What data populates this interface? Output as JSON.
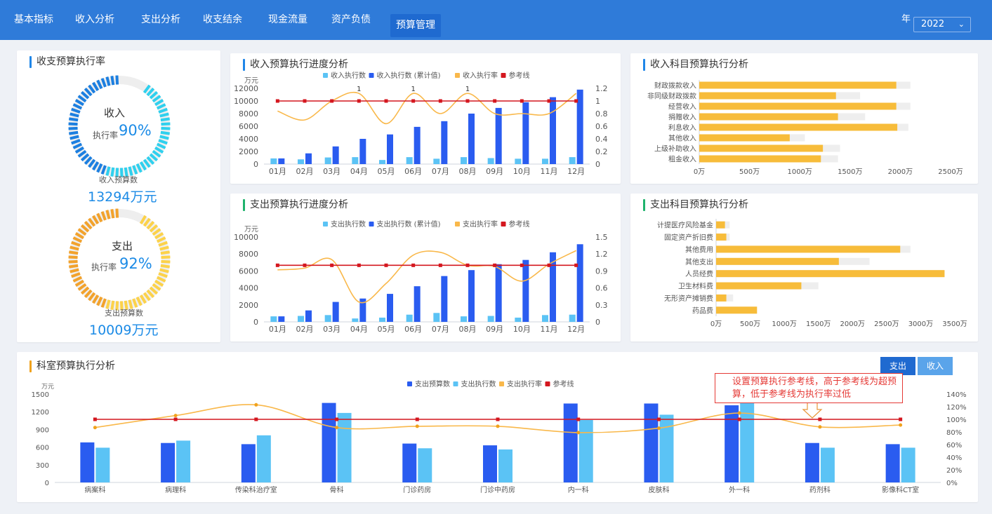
{
  "nav": {
    "items": [
      "基本指标",
      "收入分析",
      "支出分析",
      "收支结余",
      "现金流量",
      "资产负债",
      "预算管理"
    ],
    "active": 6,
    "year_label": "年",
    "year_value": "2022"
  },
  "colors": {
    "topbar": "#2f7bd9",
    "blue_dark": "#2a5cf0",
    "blue_light": "#5bc3f5",
    "orange": "#f9b84a",
    "ref_red": "#d4171f",
    "ring_blue": "#1c9ae0",
    "ring_orange": "#f5b43c",
    "bar_yellow": "#f7bc3a",
    "bar_gray": "#eeeeee"
  },
  "exec_rate": {
    "title": "收支预算执行率",
    "income": {
      "label": "收入",
      "rate_label": "执行率",
      "rate": "90%",
      "rate_value": 0.9,
      "budget_label": "收入预算数",
      "budget_value": "13294万元"
    },
    "expense": {
      "label": "支出",
      "rate_label": "执行率",
      "rate": "92%",
      "rate_value": 0.92,
      "budget_label": "支出预算数",
      "budget_value": "10009万元"
    }
  },
  "income_progress": {
    "title": "收入预算执行进度分析",
    "unit": "万元",
    "chart_data": {
      "type": "bar",
      "categories": [
        "01月",
        "02月",
        "03月",
        "04月",
        "05月",
        "06月",
        "07月",
        "08月",
        "09月",
        "10月",
        "11月",
        "12月"
      ],
      "series": [
        {
          "name": "收入执行数",
          "kind": "bar",
          "axis": "left",
          "values": [
            900,
            750,
            1050,
            1100,
            650,
            1100,
            850,
            1100,
            950,
            850,
            850,
            1100
          ]
        },
        {
          "name": "收入执行数 (累计值)",
          "kind": "bar",
          "axis": "left",
          "values": [
            900,
            1700,
            2800,
            4000,
            4700,
            5900,
            6800,
            8000,
            8900,
            9800,
            10600,
            11800
          ]
        },
        {
          "name": "收入执行率",
          "kind": "line",
          "axis": "right",
          "values": [
            0.84,
            0.7,
            1.0,
            1.12,
            0.64,
            1.12,
            0.8,
            1.12,
            0.8,
            0.8,
            0.8,
            1.12
          ]
        },
        {
          "name": "参考线",
          "kind": "line",
          "axis": "right",
          "values": [
            1,
            1,
            1,
            1,
            1,
            1,
            1,
            1,
            1,
            1,
            1,
            1
          ]
        }
      ],
      "point_labels": [
        {
          "index": 3,
          "text": "1"
        },
        {
          "index": 5,
          "text": "1"
        },
        {
          "index": 7,
          "text": "1"
        }
      ],
      "y_left": {
        "ticks": [
          "0",
          "2000",
          "4000",
          "6000",
          "8000",
          "10000",
          "12000"
        ],
        "min": 0,
        "max": 12000
      },
      "y_right": {
        "ticks": [
          "0",
          "0.2",
          "0.4",
          "0.6",
          "0.8",
          "1",
          "1.2"
        ],
        "min": 0,
        "max": 1.2
      },
      "legend_position": "top"
    }
  },
  "expense_progress": {
    "title": "支出预算执行进度分析",
    "unit": "万元",
    "chart_data": {
      "type": "bar",
      "categories": [
        "01月",
        "02月",
        "03月",
        "04月",
        "05月",
        "06月",
        "07月",
        "08月",
        "09月",
        "10月",
        "11月",
        "12月"
      ],
      "series": [
        {
          "name": "支出执行数",
          "kind": "bar",
          "axis": "left",
          "values": [
            650,
            700,
            800,
            400,
            500,
            850,
            1050,
            650,
            700,
            500,
            800,
            850
          ]
        },
        {
          "name": "支出执行数 (累计值)",
          "kind": "bar",
          "axis": "left",
          "values": [
            650,
            1350,
            2350,
            2750,
            3300,
            4200,
            5400,
            6100,
            6800,
            7300,
            8200,
            9150
          ]
        },
        {
          "name": "支出执行率",
          "kind": "line",
          "axis": "right",
          "values": [
            0.92,
            0.95,
            1.1,
            0.35,
            0.68,
            1.18,
            1.23,
            1.0,
            0.98,
            0.72,
            1.02,
            1.26
          ]
        },
        {
          "name": "参考线",
          "kind": "line",
          "axis": "right",
          "values": [
            1,
            1,
            1,
            1,
            1,
            1,
            1,
            1,
            1,
            1,
            1,
            1
          ]
        }
      ],
      "y_left": {
        "ticks": [
          "0",
          "2000",
          "4000",
          "6000",
          "8000",
          "10000"
        ],
        "min": 0,
        "max": 10000
      },
      "y_right": {
        "ticks": [
          "0",
          "0.3",
          "0.6",
          "0.9",
          "1.2",
          "1.5"
        ],
        "min": 0,
        "max": 1.5
      },
      "legend_position": "top"
    }
  },
  "income_subject": {
    "title": "收入科目预算执行分析",
    "chart_data": {
      "type": "bar",
      "orientation": "horizontal",
      "categories": [
        "财政拨款收入",
        "非同级财政拨款",
        "经营收入",
        "捐赠收入",
        "利息收入",
        "其他收入",
        "上级补助收入",
        "租金收入"
      ],
      "series": [
        {
          "name": "预算数",
          "values": [
            2100,
            1600,
            2100,
            1650,
            2080,
            1050,
            1400,
            1380
          ]
        },
        {
          "name": "执行数",
          "values": [
            1960,
            1360,
            1960,
            1380,
            1970,
            900,
            1230,
            1210
          ]
        }
      ],
      "x_ticks": [
        "0万",
        "500万",
        "1000万",
        "1500万",
        "2000万",
        "2500万"
      ],
      "xlim": [
        0,
        2500
      ]
    }
  },
  "expense_subject": {
    "title": "支出科目预算执行分析",
    "chart_data": {
      "type": "bar",
      "orientation": "horizontal",
      "categories": [
        "计提医疗风险基金",
        "固定资产折旧费",
        "其他费用",
        "其他支出",
        "人员经费",
        "卫生材料费",
        "无形资产摊销费",
        "药品费"
      ],
      "series": [
        {
          "name": "预算数",
          "values": [
            200,
            200,
            2850,
            2250,
            3350,
            1500,
            250,
            600
          ]
        },
        {
          "name": "执行数",
          "values": [
            130,
            150,
            2700,
            1800,
            3350,
            1250,
            150,
            600
          ]
        }
      ],
      "x_ticks": [
        "0万",
        "500万",
        "1000万",
        "1500万",
        "2000万",
        "2500万",
        "3000万",
        "3500万"
      ],
      "xlim": [
        0,
        3500
      ]
    }
  },
  "dept": {
    "title": "科室预算执行分析",
    "unit": "万元",
    "buttons": {
      "expense": "支出",
      "income": "收入"
    },
    "callout": "设置预算执行参考线，高于参考线为超预算，低于参考线为执行率过低",
    "chart_data": {
      "type": "bar",
      "categories": [
        "病案科",
        "病理科",
        "传染科治疗室",
        "骨科",
        "门诊药房",
        "门诊中药房",
        "内一科",
        "皮肤科",
        "外一科",
        "药剂科",
        "影像科CT室"
      ],
      "series": [
        {
          "name": "支出预算数",
          "kind": "bar",
          "axis": "left",
          "values": [
            680,
            670,
            650,
            1350,
            660,
            630,
            1340,
            1340,
            1310,
            670,
            650
          ]
        },
        {
          "name": "支出执行数",
          "kind": "bar",
          "axis": "left",
          "values": [
            590,
            710,
            800,
            1180,
            580,
            560,
            1060,
            1150,
            1440,
            590,
            590
          ]
        },
        {
          "name": "支出执行率",
          "kind": "line",
          "axis": "right",
          "values": [
            0.87,
            1.06,
            1.23,
            0.87,
            0.89,
            0.89,
            0.79,
            0.86,
            1.1,
            0.88,
            0.91
          ]
        },
        {
          "name": "参考线",
          "kind": "line",
          "axis": "right",
          "values": [
            1,
            1,
            1,
            1,
            1,
            1,
            1,
            1,
            1,
            1,
            1
          ]
        }
      ],
      "y_left": {
        "ticks": [
          "0",
          "300",
          "600",
          "900",
          "1200",
          "1500"
        ],
        "min": 0,
        "max": 1500
      },
      "y_right": {
        "ticks": [
          "0%",
          "20%",
          "40%",
          "60%",
          "80%",
          "100%",
          "120%",
          "140%"
        ],
        "min": 0,
        "max": 1.4
      },
      "legend_position": "top"
    }
  }
}
